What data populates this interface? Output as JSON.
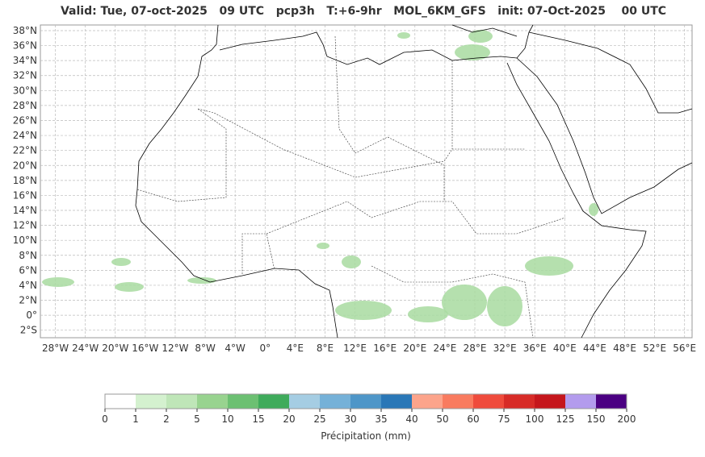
{
  "header": {
    "title": "Valid: Tue, 07-oct-2025   09 UTC   pcp3h   T:+6-9hr   MOL_6KM_GFS   init: 07-Oct-2025    00 UTC"
  },
  "map": {
    "lonlim": [
      -30,
      57
    ],
    "latlim": [
      -3,
      38.75
    ],
    "lat_ticks": [
      {
        "value": 38,
        "label": "38°N"
      },
      {
        "value": 36,
        "label": "36°N"
      },
      {
        "value": 34,
        "label": "34°N"
      },
      {
        "value": 32,
        "label": "32°N"
      },
      {
        "value": 30,
        "label": "30°N"
      },
      {
        "value": 28,
        "label": "28°N"
      },
      {
        "value": 26,
        "label": "26°N"
      },
      {
        "value": 24,
        "label": "24°N"
      },
      {
        "value": 22,
        "label": "22°N"
      },
      {
        "value": 20,
        "label": "20°N"
      },
      {
        "value": 18,
        "label": "18°N"
      },
      {
        "value": 16,
        "label": "16°N"
      },
      {
        "value": 14,
        "label": "14°N"
      },
      {
        "value": 12,
        "label": "12°N"
      },
      {
        "value": 10,
        "label": "10°N"
      },
      {
        "value": 8,
        "label": "8°N"
      },
      {
        "value": 6,
        "label": "6°N"
      },
      {
        "value": 4,
        "label": "4°N"
      },
      {
        "value": 2,
        "label": "2°N"
      },
      {
        "value": 0,
        "label": "0°"
      },
      {
        "value": -2,
        "label": "2°S"
      }
    ],
    "lon_ticks": [
      {
        "value": -28,
        "label": "28°W"
      },
      {
        "value": -24,
        "label": "24°W"
      },
      {
        "value": -20,
        "label": "20°W"
      },
      {
        "value": -16,
        "label": "16°W"
      },
      {
        "value": -12,
        "label": "12°W"
      },
      {
        "value": -8,
        "label": "8°W"
      },
      {
        "value": -4,
        "label": "4°W"
      },
      {
        "value": 0,
        "label": "0°"
      },
      {
        "value": 4,
        "label": "4°E"
      },
      {
        "value": 8,
        "label": "8°E"
      },
      {
        "value": 12,
        "label": "12°E"
      },
      {
        "value": 16,
        "label": "16°E"
      },
      {
        "value": 20,
        "label": "20°E"
      },
      {
        "value": 24,
        "label": "24°E"
      },
      {
        "value": 28,
        "label": "28°E"
      },
      {
        "value": 32,
        "label": "32°E"
      },
      {
        "value": 36,
        "label": "36°E"
      },
      {
        "value": 40,
        "label": "40°E"
      },
      {
        "value": 44,
        "label": "44°E"
      },
      {
        "value": 48,
        "label": "48°E"
      },
      {
        "value": 52,
        "label": "52°E"
      },
      {
        "value": 56,
        "label": "56°E"
      }
    ]
  },
  "colorbar": {
    "label": "Précipitation (mm)",
    "ticks": [
      0,
      1,
      2,
      5,
      10,
      15,
      20,
      25,
      30,
      35,
      40,
      50,
      60,
      75,
      100,
      125,
      150,
      200
    ],
    "colors": [
      "#ffffff",
      "#d4f1cf",
      "#bfe6b8",
      "#98d38f",
      "#6cc072",
      "#3fab5b",
      "#a5cde3",
      "#75b1d8",
      "#4e96c8",
      "#2a77b7",
      "#fca48b",
      "#f97b5f",
      "#ef4b3c",
      "#d72b27",
      "#c5161c",
      "#b39bed",
      "#4b0082"
    ]
  }
}
